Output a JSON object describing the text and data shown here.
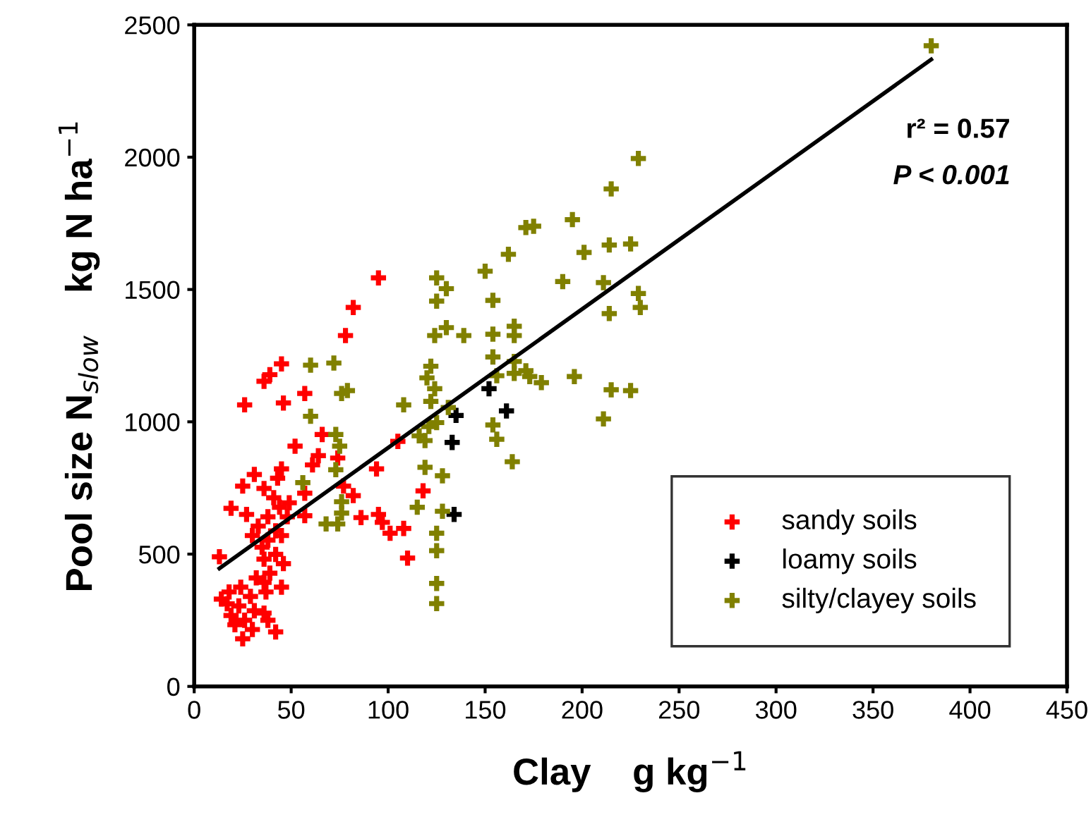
{
  "chart_data": {
    "type": "scatter",
    "xlabel": "Clay    g kg$^{−1}$",
    "ylabel": "Pool size N$_{slow}$    kg N ha$^{−1}$",
    "xlim": [
      0,
      450
    ],
    "xticks": [
      0,
      50,
      100,
      150,
      200,
      250,
      300,
      350,
      400,
      450
    ],
    "ylim": [
      0,
      2500
    ],
    "yticks": [
      0,
      500,
      1000,
      1500,
      2000,
      2500
    ],
    "grid": false,
    "legend": "bottom right",
    "marker": "cross",
    "annotations": [
      "r² = 0.57",
      "P < 0.001"
    ],
    "series": [
      {
        "name": "sandy soils",
        "color": "#ff0000",
        "x": [
          95,
          82,
          78,
          45,
          39,
          36,
          26,
          46,
          57,
          66,
          52,
          64,
          61,
          105,
          94,
          74,
          45,
          43,
          31,
          25,
          19,
          27,
          77,
          82,
          57,
          57,
          86,
          95,
          97,
          101,
          108,
          110,
          13,
          118,
          36,
          41,
          44,
          48,
          38,
          33,
          42,
          30,
          38,
          45,
          35,
          42,
          36,
          46,
          39,
          36,
          45,
          37,
          32,
          49,
          18,
          24,
          29,
          17,
          23,
          31,
          19,
          26,
          36,
          38,
          21,
          30,
          25,
          42,
          14
        ],
        "values": [
          1544,
          1432,
          1326,
          1219,
          1178,
          1153,
          1064,
          1071,
          1107,
          952,
          908,
          872,
          837,
          926,
          822,
          863,
          822,
          787,
          801,
          757,
          673,
          650,
          757,
          721,
          730,
          645,
          638,
          650,
          620,
          579,
          597,
          485,
          490,
          739,
          748,
          713,
          677,
          641,
          641,
          606,
          588,
          570,
          553,
          570,
          526,
          499,
          481,
          464,
          428,
          393,
          375,
          357,
          410,
          694,
          357,
          375,
          340,
          312,
          304,
          286,
          268,
          250,
          277,
          250,
          233,
          215,
          180,
          206,
          330
        ]
      },
      {
        "name": "loamy soils",
        "color": "#000000",
        "x": [
          152,
          161,
          135,
          133,
          134
        ],
        "values": [
          1125,
          1041,
          1024,
          922,
          650
        ]
      },
      {
        "name": "silty/clayey soils",
        "color": "#808000",
        "x": [
          60,
          72,
          76,
          79,
          60,
          108,
          73,
          75,
          73,
          56,
          76,
          76,
          68,
          74,
          195,
          171,
          175,
          214,
          225,
          201,
          162,
          150,
          125,
          130,
          125,
          154,
          190,
          211,
          229,
          230,
          214,
          130,
          124,
          139,
          154,
          165,
          165,
          154,
          165,
          165,
          171,
          173,
          179,
          196,
          156,
          122,
          120,
          124,
          122,
          215,
          225,
          211,
          131,
          125,
          121,
          116,
          119,
          154,
          156,
          164,
          119,
          128,
          115,
          128,
          125,
          125,
          125,
          125,
          380,
          229,
          215
        ],
        "values": [
          1214,
          1222,
          1107,
          1118,
          1021,
          1064,
          952,
          908,
          819,
          770,
          698,
          655,
          614,
          614,
          1764,
          1734,
          1739,
          1668,
          1672,
          1640,
          1633,
          1569,
          1544,
          1503,
          1456,
          1459,
          1530,
          1526,
          1485,
          1432,
          1409,
          1356,
          1326,
          1326,
          1331,
          1361,
          1326,
          1245,
          1228,
          1183,
          1193,
          1171,
          1148,
          1171,
          1174,
          1210,
          1166,
          1125,
          1077,
          1121,
          1118,
          1011,
          1054,
          997,
          982,
          947,
          929,
          988,
          934,
          849,
          828,
          796,
          677,
          662,
          579,
          513,
          389,
          313,
          2421,
          1995,
          1880
        ]
      },
      {
        "type": "line",
        "marker": "none",
        "color": "#000000",
        "x": [
          13,
          380
        ],
        "values": [
          446,
          2369
        ]
      }
    ]
  }
}
